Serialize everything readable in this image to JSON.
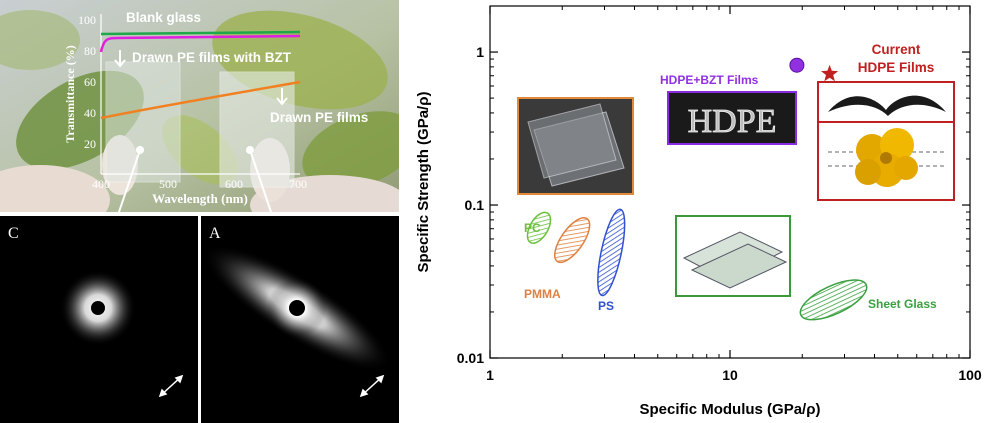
{
  "inset_spectrum": {
    "ylabel": "Transmittance (%)",
    "xlabel": "Wavelength (nm)",
    "y_ticks": [
      "100",
      "80",
      "60",
      "40",
      "20"
    ],
    "x_ticks": [
      "400",
      "500",
      "600",
      "700"
    ],
    "labels": {
      "blank": "Blank glass",
      "bzt": "Drawn PE films with BZT",
      "pe": "Drawn PE films"
    },
    "colors": {
      "blank": "#1ea84a",
      "bzt": "#e020e0",
      "pe": "#f08020",
      "text": "#ffffff"
    }
  },
  "saxs": [
    {
      "letter": "C"
    },
    {
      "letter": "A"
    }
  ],
  "chart_data": {
    "type": "scatter",
    "xlabel": "Specific Modulus (GPa/ρ)",
    "ylabel": "Specific Strength (GPa/ρ)",
    "xscale": "log",
    "yscale": "log",
    "xlim": [
      1,
      100
    ],
    "ylim": [
      0.01,
      2
    ],
    "x_ticks": [
      {
        "value": 1,
        "label": "1"
      },
      {
        "value": 10,
        "label": "10"
      },
      {
        "value": 100,
        "label": "100"
      }
    ],
    "y_ticks": [
      {
        "value": 1,
        "label": "1"
      },
      {
        "value": 0.1,
        "label": "0.1"
      },
      {
        "value": 0.01,
        "label": "0.01"
      }
    ],
    "grid": false,
    "regions": [
      {
        "name": "PC",
        "x": 1.6,
        "y": 0.071,
        "color": "#6cbf3c"
      },
      {
        "name": "PMMA",
        "x": 2.2,
        "y": 0.059,
        "color": "#e08040"
      },
      {
        "name": "PS",
        "x": 3.2,
        "y": 0.049,
        "color": "#3050d0"
      },
      {
        "name": "Sheet Glass",
        "x": 27,
        "y": 0.024,
        "color": "#3aa040"
      }
    ],
    "points": [
      {
        "name": "HDPE+BZT Films",
        "x": 19,
        "y": 0.82,
        "marker": "circle",
        "color": "#9030e0"
      },
      {
        "name": "Current HDPE Films",
        "x": 26,
        "y": 0.72,
        "marker": "star",
        "color": "#c02020"
      }
    ],
    "annotations": [
      {
        "text": "HDPE+BZT Films",
        "color": "#9030e0"
      },
      {
        "text": "Current",
        "color": "#c02020"
      },
      {
        "text": "HDPE Films",
        "color": "#c02020"
      },
      {
        "text": "PC",
        "color": "#6cbf3c"
      },
      {
        "text": "PMMA",
        "color": "#e08040"
      },
      {
        "text": "PS",
        "color": "#3050d0"
      },
      {
        "text": "Sheet Glass",
        "color": "#3aa040"
      }
    ],
    "inset_text": {
      "hdpe": "HDPE"
    }
  }
}
